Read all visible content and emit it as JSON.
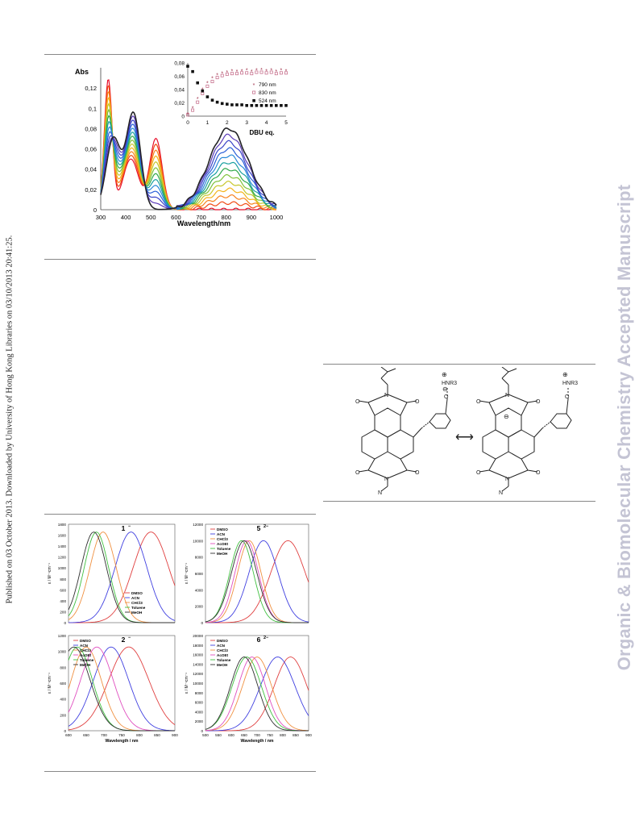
{
  "margin_left": "Published on 03 October 2013. Downloaded by University of Hong Kong Libraries on 03/10/2013 20:41:25.",
  "margin_right": "Organic & Biomolecular Chemistry Accepted Manuscript",
  "colors": {
    "watermark": "#c4c4d4",
    "rule": "#888888"
  },
  "figure1": {
    "ylabel": "Abs",
    "xlabel": "Wavelength/nm",
    "yticks": [
      "0",
      "0,02",
      "0,04",
      "0,06",
      "0,08",
      "0,1",
      "0,12"
    ],
    "xticks": [
      "300",
      "400",
      "500",
      "600",
      "700",
      "800",
      "900",
      "1000"
    ],
    "inset": {
      "xlabel": "DBU eq.",
      "yticks": [
        "0",
        "0,02",
        "0,04",
        "0,06",
        "0,08"
      ],
      "xticks": [
        "0",
        "1",
        "2",
        "3",
        "4",
        "5"
      ],
      "legend": [
        "790 nm",
        "830 nm",
        "524 nm"
      ]
    }
  },
  "figure2": {
    "lines": [
      "HNR3",
      "HNR3"
    ]
  },
  "figure3": {
    "panels": [
      {
        "title": "1",
        "charge": "−",
        "legend": [
          "DMSO",
          "ACN",
          "CHCl3",
          "Toluene",
          "MeOH"
        ],
        "yticks": [
          "0",
          "200",
          "400",
          "600",
          "800",
          "1000",
          "1200",
          "1400",
          "1600",
          "1800"
        ]
      },
      {
        "title": "5",
        "charge": "2−",
        "legend": [
          "DMSO",
          "ACN",
          "CHCl3",
          "AcOEt",
          "Toluene",
          "MeOH"
        ],
        "yticks": [
          "0",
          "2000",
          "4000",
          "6000",
          "8000",
          "10000",
          "12000"
        ]
      },
      {
        "title": "2",
        "charge": "−",
        "legend": [
          "DMSO",
          "ACN",
          "CHCl3",
          "AcOEt",
          "Toluene",
          "MeOH"
        ],
        "yticks": [
          "0",
          "200",
          "400",
          "600",
          "800",
          "1000",
          "1200"
        ]
      },
      {
        "title": "6",
        "charge": "2−",
        "legend": [
          "DMSO",
          "ACN",
          "CHCl3",
          "AcOEt",
          "Toluene",
          "MeOH"
        ],
        "yticks": [
          "0",
          "2000",
          "4000",
          "6000",
          "8000",
          "10000",
          "12000",
          "14000",
          "16000",
          "18000",
          "20000"
        ]
      }
    ],
    "ylabel": "ε / M⁻¹cm⁻¹",
    "xlabel": "Wavelength / nm",
    "xticks_left": [
      "500",
      "550",
      "600",
      "650",
      "700",
      "750",
      "800",
      "850",
      "900"
    ],
    "xticks_right": [
      "500",
      "550",
      "600",
      "650",
      "700",
      "750",
      "800",
      "850",
      "900"
    ]
  },
  "chart_data": [
    {
      "type": "line",
      "xlabel": "Wavelength/nm",
      "ylabel": "Abs",
      "xlim": [
        300,
        1000
      ],
      "ylim": [
        0,
        0.14
      ],
      "series_colors": [
        "#e8102c",
        "#f04a14",
        "#f7821c",
        "#f4b41c",
        "#c7c62a",
        "#7fc23a",
        "#30a84a",
        "#1aa0a0",
        "#2a8ad8",
        "#2a60d8",
        "#3a44c8",
        "#5a3ab8",
        "#232327"
      ],
      "titration_steps": 13
    },
    {
      "type": "scatter",
      "xlabel": "DBU eq.",
      "xlim": [
        0,
        5
      ],
      "ylim": [
        0,
        0.08
      ],
      "series": [
        {
          "name": "790 nm",
          "x": [
            0,
            0.25,
            0.5,
            0.75,
            1,
            1.25,
            1.5,
            1.75,
            2,
            2.25,
            2.5,
            2.75,
            3,
            3.25,
            3.5,
            3.75,
            4,
            4.25,
            4.5,
            4.75,
            5
          ],
          "values": [
            0.003,
            0.012,
            0.026,
            0.04,
            0.05,
            0.057,
            0.062,
            0.064,
            0.066,
            0.068,
            0.067,
            0.068,
            0.069,
            0.067,
            0.069,
            0.07,
            0.068,
            0.069,
            0.067,
            0.069,
            0.068
          ]
        },
        {
          "name": "830 nm",
          "x": [
            0,
            0.25,
            0.5,
            0.75,
            1,
            1.25,
            1.5,
            1.75,
            2,
            2.25,
            2.5,
            2.75,
            3,
            3.25,
            3.5,
            3.75,
            4,
            4.25,
            4.5,
            4.75,
            5
          ],
          "values": [
            0.002,
            0.009,
            0.021,
            0.034,
            0.045,
            0.052,
            0.058,
            0.061,
            0.063,
            0.064,
            0.064,
            0.065,
            0.065,
            0.064,
            0.066,
            0.066,
            0.065,
            0.066,
            0.064,
            0.065,
            0.065
          ]
        },
        {
          "name": "524 nm",
          "x": [
            0,
            0.25,
            0.5,
            0.75,
            1,
            1.25,
            1.5,
            1.75,
            2,
            2.25,
            2.5,
            2.75,
            3,
            3.25,
            3.5,
            3.75,
            4,
            4.25,
            4.5,
            4.75,
            5
          ],
          "values": [
            0.075,
            0.067,
            0.05,
            0.038,
            0.029,
            0.024,
            0.021,
            0.019,
            0.018,
            0.017,
            0.017,
            0.017,
            0.016,
            0.016,
            0.016,
            0.016,
            0.016,
            0.016,
            0.016,
            0.016,
            0.016
          ]
        }
      ]
    },
    {
      "type": "line",
      "ylim": [
        0,
        1900
      ],
      "xlim": [
        500,
        900
      ],
      "series": [
        {
          "name": "DMSO",
          "peak": 810,
          "width": 95,
          "max": 1750
        },
        {
          "name": "ACN",
          "peak": 735,
          "width": 85,
          "max": 1750
        },
        {
          "name": "CHCl3",
          "peak": 630,
          "width": 70,
          "max": 1750
        },
        {
          "name": "Toluene",
          "peak": 605,
          "width": 65,
          "max": 1750
        },
        {
          "name": "MeOH",
          "peak": 595,
          "width": 68,
          "max": 1750
        }
      ]
    },
    {
      "type": "line",
      "ylim": [
        0,
        12000
      ],
      "xlim": [
        500,
        900
      ],
      "series": [
        {
          "name": "DMSO",
          "peak": 820,
          "width": 95,
          "max": 10000
        },
        {
          "name": "ACN",
          "peak": 725,
          "width": 80,
          "max": 10000
        },
        {
          "name": "CHCl3",
          "peak": 670,
          "width": 65,
          "max": 10000
        },
        {
          "name": "AcOEt",
          "peak": 660,
          "width": 65,
          "max": 10000
        },
        {
          "name": "Toluene",
          "peak": 640,
          "width": 65,
          "max": 10000
        },
        {
          "name": "MeOH",
          "peak": 650,
          "width": 70,
          "max": 10000
        }
      ]
    },
    {
      "type": "line",
      "ylim": [
        0,
        1250
      ],
      "xlim": [
        600,
        900
      ],
      "series": [
        {
          "name": "DMSO",
          "peak": 770,
          "width": 80,
          "max": 1100
        },
        {
          "name": "ACN",
          "peak": 720,
          "width": 70,
          "max": 1100
        },
        {
          "name": "CHCl3",
          "peak": 650,
          "width": 60,
          "max": 1100
        },
        {
          "name": "AcOEt",
          "peak": 680,
          "width": 65,
          "max": 1100
        },
        {
          "name": "Toluene",
          "peak": 625,
          "width": 60,
          "max": 1100
        },
        {
          "name": "MeOH",
          "peak": 615,
          "width": 65,
          "max": 1100
        }
      ]
    },
    {
      "type": "line",
      "ylim": [
        0,
        20000
      ],
      "xlim": [
        500,
        900
      ],
      "series": [
        {
          "name": "DMSO",
          "peak": 830,
          "width": 90,
          "max": 15500
        },
        {
          "name": "ACN",
          "peak": 780,
          "width": 95,
          "max": 15500
        },
        {
          "name": "CHCl3",
          "peak": 700,
          "width": 80,
          "max": 15500
        },
        {
          "name": "AcOEt",
          "peak": 680,
          "width": 75,
          "max": 15500
        },
        {
          "name": "Toluene",
          "peak": 660,
          "width": 80,
          "max": 15500
        },
        {
          "name": "MeOH",
          "peak": 650,
          "width": 75,
          "max": 15500
        }
      ]
    }
  ]
}
